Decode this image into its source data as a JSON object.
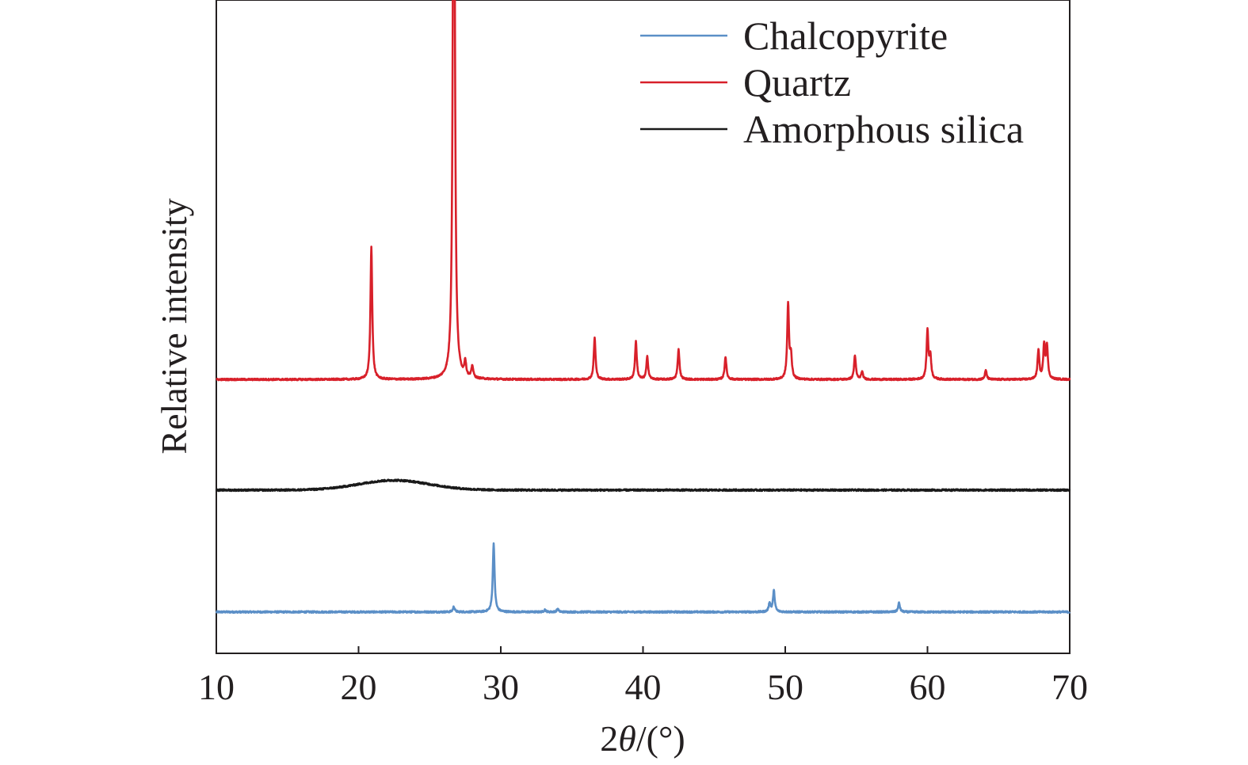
{
  "chart_data": {
    "type": "line",
    "title": "",
    "xlabel_prefix": "2",
    "xlabel_theta": "θ",
    "xlabel_suffix": "/(°)",
    "ylabel": "Relative intensity",
    "xlim": [
      10,
      70
    ],
    "xticks": [
      "10",
      "20",
      "30",
      "40",
      "50",
      "60",
      "70"
    ],
    "y_ticks_shown": false,
    "grid": false,
    "legend_position": "top-right",
    "offset_note": "",
    "series": [
      {
        "name": "Chalcopyrite",
        "color": "#5b8fc7",
        "baseline": 0.055,
        "broad": [],
        "peaks": [
          {
            "x": 26.7,
            "h": 0.007
          },
          {
            "x": 29.5,
            "h": 0.091
          },
          {
            "x": 33.1,
            "h": 0.003
          },
          {
            "x": 34.0,
            "h": 0.004
          },
          {
            "x": 48.9,
            "h": 0.012
          },
          {
            "x": 49.2,
            "h": 0.028
          },
          {
            "x": 58.0,
            "h": 0.012
          }
        ]
      },
      {
        "name": "Quartz",
        "color": "#d8202a",
        "baseline": 0.364,
        "broad": [],
        "peaks": [
          {
            "x": 20.9,
            "h": 0.176
          },
          {
            "x": 26.7,
            "h": 1.0
          },
          {
            "x": 27.5,
            "h": 0.02
          },
          {
            "x": 28.0,
            "h": 0.016
          },
          {
            "x": 36.6,
            "h": 0.055
          },
          {
            "x": 39.5,
            "h": 0.05
          },
          {
            "x": 40.3,
            "h": 0.03
          },
          {
            "x": 42.5,
            "h": 0.04
          },
          {
            "x": 45.8,
            "h": 0.03
          },
          {
            "x": 50.2,
            "h": 0.099
          },
          {
            "x": 50.4,
            "h": 0.03
          },
          {
            "x": 54.9,
            "h": 0.032
          },
          {
            "x": 55.4,
            "h": 0.01
          },
          {
            "x": 60.0,
            "h": 0.064
          },
          {
            "x": 60.2,
            "h": 0.03
          },
          {
            "x": 64.1,
            "h": 0.012
          },
          {
            "x": 67.8,
            "h": 0.038
          },
          {
            "x": 68.2,
            "h": 0.044
          },
          {
            "x": 68.4,
            "h": 0.044
          }
        ]
      },
      {
        "name": "Amorphous silica",
        "color": "#1a1a1a",
        "baseline": 0.217,
        "broad": [
          {
            "x": 22.5,
            "h": 0.013,
            "w": 3.5
          }
        ],
        "peaks": []
      }
    ]
  }
}
